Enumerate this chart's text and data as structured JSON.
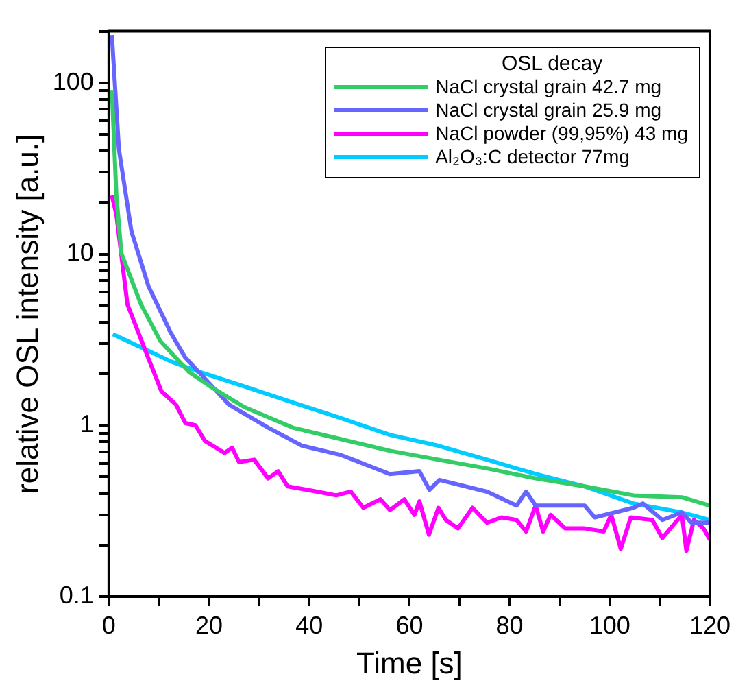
{
  "chart_data": {
    "type": "line",
    "xlabel": "Time [s]",
    "ylabel": "relative OSL intensity [a.u.]",
    "legend_title": "OSL decay",
    "legend": "top right",
    "log": "y",
    "grid": false,
    "marker": "none",
    "line_style": "solid",
    "xlim": [
      0,
      120
    ],
    "xticks": [
      0,
      {
        "value": 10,
        "label": null
      },
      20,
      {
        "value": 30,
        "label": null
      },
      40,
      {
        "value": 50,
        "label": null
      },
      60,
      {
        "value": 70,
        "label": null
      },
      80,
      {
        "value": 90,
        "label": null
      },
      100,
      {
        "value": 110,
        "label": null
      },
      120
    ],
    "ylim": [
      0.1,
      200
    ],
    "yticks": [
      0.1,
      {
        "value": 0.2,
        "label": null
      },
      {
        "value": 0.3,
        "label": null
      },
      {
        "value": 0.4,
        "label": null
      },
      {
        "value": 0.5,
        "label": null
      },
      {
        "value": 0.6,
        "label": null
      },
      {
        "value": 0.7,
        "label": null
      },
      {
        "value": 0.8,
        "label": null
      },
      {
        "value": 0.9,
        "label": null
      },
      1,
      {
        "value": 2,
        "label": null
      },
      {
        "value": 3,
        "label": null
      },
      {
        "value": 4,
        "label": null
      },
      {
        "value": 5,
        "label": null
      },
      {
        "value": 6,
        "label": null
      },
      {
        "value": 7,
        "label": null
      },
      {
        "value": 8,
        "label": null
      },
      {
        "value": 9,
        "label": null
      },
      10,
      {
        "value": 20,
        "label": null
      },
      {
        "value": 30,
        "label": null
      },
      {
        "value": 40,
        "label": null
      },
      {
        "value": 50,
        "label": null
      },
      {
        "value": 60,
        "label": null
      },
      {
        "value": 70,
        "label": null
      },
      {
        "value": 80,
        "label": null
      },
      {
        "value": 90,
        "label": null
      },
      100,
      {
        "value": 200,
        "label": null
      }
    ],
    "series": [
      {
        "name": "NaCl crystal grain 42.7 mg",
        "color": "#33cc66",
        "x": [
          0.6,
          1.5,
          2.5,
          6.4,
          10.3,
          16,
          20.2,
          27,
          36.7,
          46.4,
          56.1,
          65.8,
          75.5,
          85.2,
          95,
          104.7,
          114.4,
          120
        ],
        "values": [
          91,
          22,
          10.1,
          5.1,
          3.1,
          2.05,
          1.69,
          1.28,
          0.97,
          0.83,
          0.71,
          0.63,
          0.56,
          0.49,
          0.44,
          0.39,
          0.38,
          0.34
        ]
      },
      {
        "name": "NaCl crystal grain 25.9 mg",
        "color": "#6666ff",
        "x": [
          0.6,
          2,
          4.5,
          7.9,
          12.3,
          15.2,
          17.3,
          24,
          31.8,
          38.6,
          46.4,
          56.1,
          62,
          64,
          66,
          75.5,
          81.4,
          83.3,
          85.2,
          95,
          97,
          104.7,
          106.6,
          110.5,
          114.4,
          116.3,
          120
        ],
        "values": [
          190,
          41,
          13.6,
          6.5,
          3.5,
          2.5,
          2.15,
          1.32,
          0.97,
          0.76,
          0.67,
          0.52,
          0.54,
          0.42,
          0.48,
          0.41,
          0.34,
          0.41,
          0.34,
          0.34,
          0.29,
          0.33,
          0.35,
          0.28,
          0.31,
          0.27,
          0.27
        ]
      },
      {
        "name": "NaCl powder (99,95%) 43 mg",
        "color": "#ff00ff",
        "x": [
          0.6,
          1.5,
          3.7,
          7.6,
          10.5,
          13.4,
          15.3,
          17.3,
          19.2,
          23.1,
          24.6,
          26,
          29,
          31.8,
          33.8,
          35.7,
          41.6,
          45.4,
          48.3,
          50.8,
          54.2,
          56.1,
          59,
          61,
          62,
          63.9,
          65.8,
          67.3,
          69.7,
          72.6,
          75.5,
          78.4,
          81.4,
          83.3,
          85.2,
          86.7,
          88.2,
          91.1,
          95,
          98.8,
          100.3,
          102.2,
          104.2,
          108.5,
          110.5,
          114.4,
          115.3,
          116.8,
          118.7,
          120
        ],
        "values": [
          22,
          17,
          5.1,
          2.59,
          1.58,
          1.32,
          1.03,
          1.0,
          0.81,
          0.69,
          0.74,
          0.61,
          0.63,
          0.49,
          0.54,
          0.44,
          0.41,
          0.39,
          0.41,
          0.33,
          0.37,
          0.32,
          0.37,
          0.3,
          0.36,
          0.23,
          0.33,
          0.28,
          0.25,
          0.33,
          0.27,
          0.29,
          0.28,
          0.24,
          0.34,
          0.24,
          0.3,
          0.25,
          0.25,
          0.24,
          0.3,
          0.19,
          0.29,
          0.28,
          0.22,
          0.3,
          0.185,
          0.28,
          0.25,
          0.215
        ]
      },
      {
        "name": "Al₂O₃:C detector 77mg",
        "color": "#00ccff",
        "x": [
          0.8,
          5.6,
          12.4,
          17.3,
          27,
          36.7,
          46.4,
          56.1,
          65.8,
          75.5,
          85.2,
          95,
          104.7,
          114.4,
          120
        ],
        "values": [
          3.41,
          2.93,
          2.36,
          2.09,
          1.69,
          1.36,
          1.1,
          0.88,
          0.76,
          0.63,
          0.52,
          0.44,
          0.35,
          0.31,
          0.28
        ]
      }
    ]
  }
}
